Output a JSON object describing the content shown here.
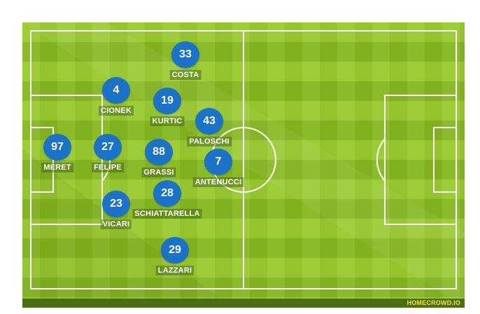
{
  "brand": "HOMECROWD.IO",
  "colors": {
    "pitch_light": "#98c92e",
    "pitch_dark": "#7fb31d",
    "badge": "#1a73c9",
    "lines": "#ffffff",
    "brand_text": "#ffe600"
  },
  "players": [
    {
      "number": "33",
      "name": "COSTA"
    },
    {
      "number": "4",
      "name": "CIONEK"
    },
    {
      "number": "19",
      "name": "KURTIC"
    },
    {
      "number": "43",
      "name": "PALOSCHI"
    },
    {
      "number": "97",
      "name": "MERET"
    },
    {
      "number": "27",
      "name": "FELIPE"
    },
    {
      "number": "88",
      "name": "GRASSI"
    },
    {
      "number": "7",
      "name": "ANTENUCCI"
    },
    {
      "number": "28",
      "name": "SCHIATTARELLA"
    },
    {
      "number": "23",
      "name": "VICARI"
    },
    {
      "number": "29",
      "name": "LAZZARI"
    }
  ]
}
